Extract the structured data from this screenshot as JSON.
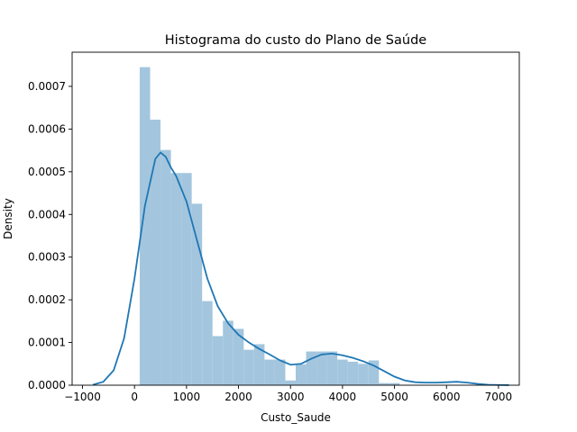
{
  "chart_data": {
    "type": "bar",
    "title": "Histograma do custo do Plano de Saúde",
    "xlabel": "Custo_Saude",
    "ylabel": "Density",
    "xlim": [
      -1200,
      7400
    ],
    "ylim": [
      0,
      0.00078
    ],
    "x_ticks": [
      -1000,
      0,
      1000,
      2000,
      3000,
      4000,
      5000,
      6000,
      7000
    ],
    "x_tick_labels": [
      "−1000",
      "0",
      "1000",
      "2000",
      "3000",
      "4000",
      "5000",
      "6000",
      "7000"
    ],
    "y_ticks": [
      0,
      0.0001,
      0.0002,
      0.0003,
      0.0004,
      0.0005,
      0.0006,
      0.0007
    ],
    "y_tick_labels": [
      "0.0000",
      "0.0001",
      "0.0002",
      "0.0003",
      "0.0004",
      "0.0005",
      "0.0006",
      "0.0007"
    ],
    "bin_edges": [
      100,
      300,
      500,
      700,
      900,
      1100,
      1300,
      1500,
      1700,
      1900,
      2100,
      2300,
      2500,
      2700,
      2900,
      3100,
      3300,
      3500,
      3700,
      3900,
      4100,
      4300,
      4500,
      4700,
      4900,
      5100
    ],
    "bar_values": [
      0.000745,
      0.000622,
      0.000551,
      0.000497,
      0.000497,
      0.000425,
      0.000197,
      0.000115,
      0.000151,
      0.000132,
      8.3e-05,
      9.6e-05,
      6e-05,
      6e-05,
      1.1e-05,
      4.9e-05,
      7.9e-05,
      7.9e-05,
      7.9e-05,
      6e-05,
      5.5e-05,
      5e-05,
      5.8e-05,
      5e-06,
      5e-06
    ],
    "kde": {
      "x": [
        -800,
        -600,
        -400,
        -200,
        0,
        200,
        400,
        500,
        600,
        700,
        800,
        1000,
        1200,
        1400,
        1600,
        1800,
        2000,
        2200,
        2400,
        2600,
        2800,
        3000,
        3200,
        3400,
        3600,
        3800,
        4000,
        4200,
        4400,
        4600,
        4800,
        5000,
        5200,
        5400,
        5600,
        5800,
        6000,
        6200,
        6400,
        6600,
        6800,
        7000,
        7200
      ],
      "y": [
        1e-06,
        8e-06,
        3.5e-05,
        0.00011,
        0.00025,
        0.00042,
        0.00053,
        0.000545,
        0.000535,
        0.00051,
        0.00049,
        0.00043,
        0.00034,
        0.00025,
        0.000185,
        0.000145,
        0.000118,
        0.0001,
        8.5e-05,
        7.2e-05,
        5.8e-05,
        4.8e-05,
        5e-05,
        6.2e-05,
        7.2e-05,
        7.4e-05,
        7e-05,
        6.4e-05,
        5.6e-05,
        4.6e-05,
        3.3e-05,
        2e-05,
        1.1e-05,
        7e-06,
        6e-06,
        6e-06,
        7e-06,
        8e-06,
        6e-06,
        3e-06,
        1e-06,
        5e-07,
        1e-07
      ]
    },
    "bar_color": "#a3c6de",
    "line_color": "#1f77b4",
    "grid": false
  }
}
